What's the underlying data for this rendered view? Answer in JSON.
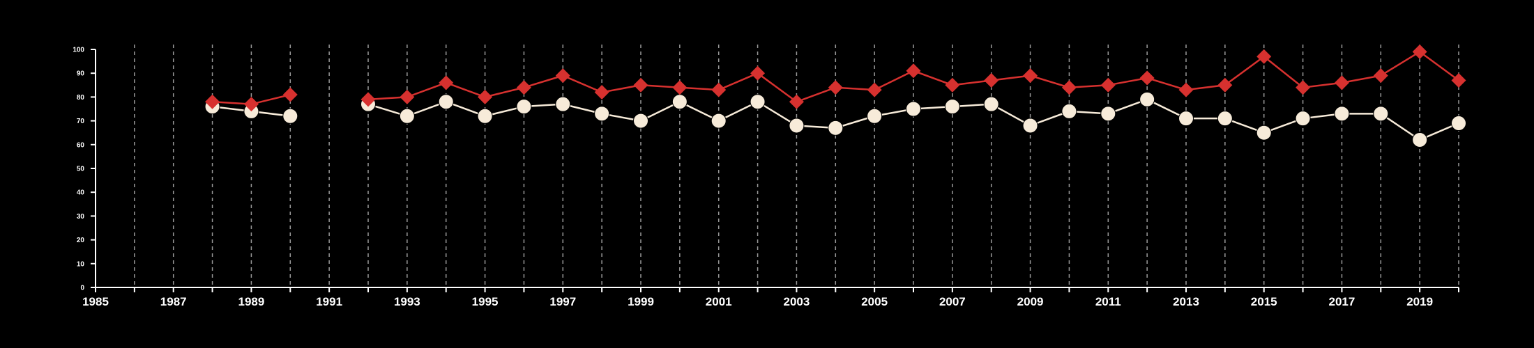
{
  "colors": {
    "background": "#000000",
    "axis": "#ffffff",
    "grid": "#9a9a9a",
    "series_red": "#d7312f",
    "series_cream": "#f7ebd9"
  },
  "chart_data": {
    "type": "line",
    "title": "",
    "xlabel": "",
    "ylabel": "",
    "xlim": [
      1985,
      2020
    ],
    "ylim": [
      0,
      100
    ],
    "x_ticks": [
      1985,
      1987,
      1989,
      1991,
      1993,
      1995,
      1997,
      1999,
      2001,
      2003,
      2005,
      2007,
      2009,
      2011,
      2013,
      2015,
      2017,
      2019
    ],
    "y_ticks": [
      0,
      10,
      20,
      30,
      40,
      50,
      60,
      70,
      80,
      90,
      100
    ],
    "grid": "vertical dashed lines at every year",
    "legend": "none",
    "x": [
      1985,
      1986,
      1987,
      1988,
      1989,
      1990,
      1991,
      1992,
      1993,
      1994,
      1995,
      1996,
      1997,
      1998,
      1999,
      2000,
      2001,
      2002,
      2003,
      2004,
      2005,
      2006,
      2007,
      2008,
      2009,
      2010,
      2011,
      2012,
      2013,
      2014,
      2015,
      2016,
      2017,
      2018,
      2019,
      2020
    ],
    "series": [
      {
        "marker": "diamond",
        "color": "#d7312f",
        "values": [
          null,
          null,
          null,
          78,
          77,
          81,
          null,
          79,
          80,
          86,
          80,
          84,
          89,
          82,
          85,
          84,
          83,
          90,
          78,
          84,
          83,
          91,
          85,
          87,
          89,
          84,
          85,
          88,
          83,
          85,
          97,
          84,
          86,
          89,
          99,
          87
        ]
      },
      {
        "marker": "circle",
        "color": "#f7ebd9",
        "values": [
          null,
          null,
          null,
          76,
          74,
          72,
          null,
          77,
          72,
          78,
          72,
          76,
          77,
          73,
          70,
          78,
          70,
          78,
          68,
          67,
          72,
          75,
          76,
          77,
          68,
          74,
          73,
          79,
          71,
          71,
          65,
          71,
          73,
          73,
          62,
          69
        ]
      }
    ]
  }
}
